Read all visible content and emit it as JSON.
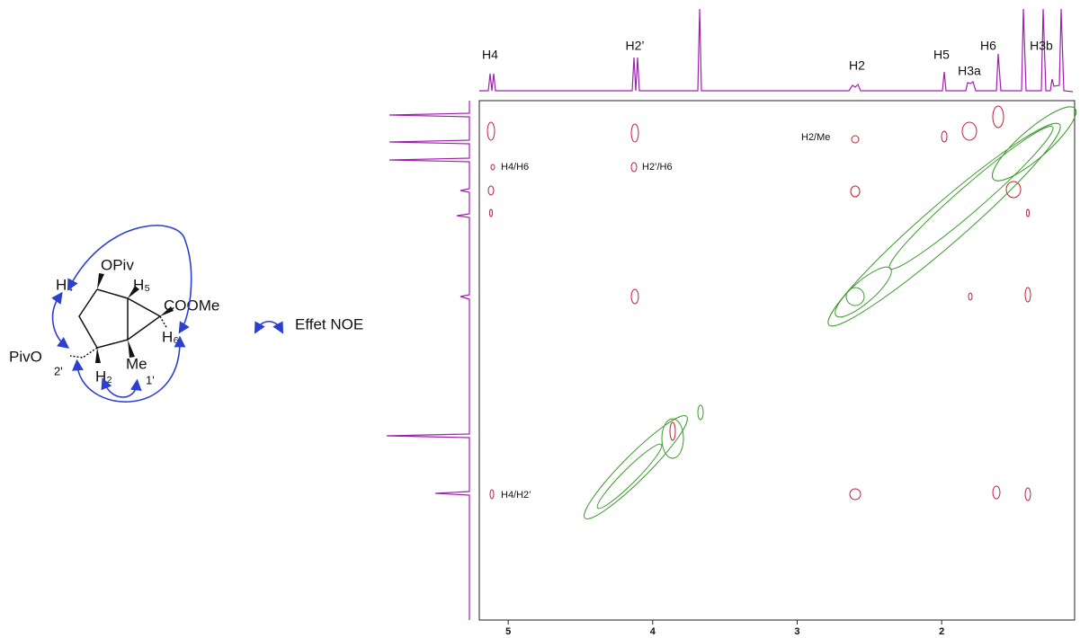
{
  "molecule": {
    "labels": [
      "OPiv",
      "H₄",
      "H₅",
      "COOMe",
      "H₆",
      "PivO",
      "2'",
      "H₂",
      "Me",
      "1'"
    ]
  },
  "legend": "Effet NOE",
  "spectrum": {
    "top_labels": [
      "H4",
      "H2’",
      "H2",
      "H5",
      "H3a",
      "H6",
      "H3b"
    ],
    "crosspeak_labels": [
      "H2/Me",
      "H4/H6",
      "H2’/H6",
      "H4/H2’"
    ],
    "xlim": [
      5.2,
      1.08
    ],
    "xticks": [
      5,
      4,
      3,
      2
    ]
  }
}
